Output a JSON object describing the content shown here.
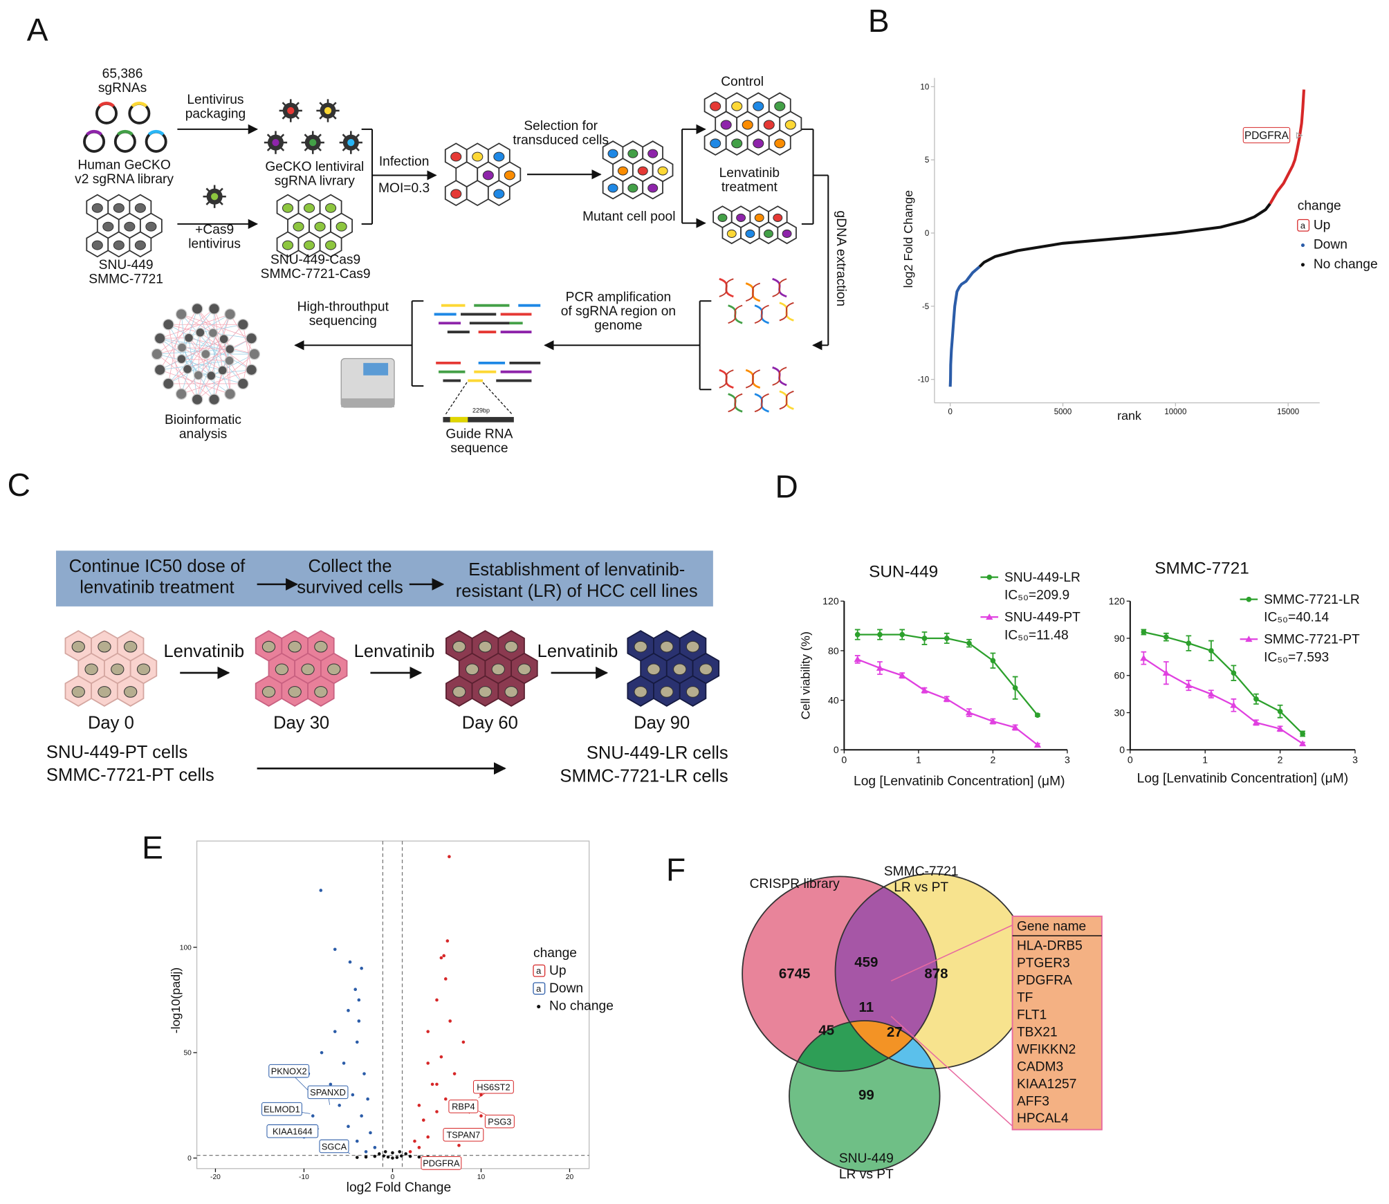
{
  "panel_labels": [
    "A",
    "B",
    "C",
    "D",
    "E",
    "F"
  ],
  "panel_a": {
    "library_size": [
      "65,386",
      "sgRNAs"
    ],
    "library": [
      "Human GeCKO",
      "v2 sgRNA library"
    ],
    "packaging": [
      "Lentivirus",
      "packaging"
    ],
    "virus": [
      "GeCKO lentiviral",
      "sgRNA livrary"
    ],
    "infection": [
      "Infection"
    ],
    "moi": [
      "MOI=0.3"
    ],
    "selection": [
      "Selection for",
      "transduced cells"
    ],
    "control": [
      "Control"
    ],
    "treatment": [
      "Lenvatinib",
      "treatment"
    ],
    "pool": [
      "Mutant cell pool"
    ],
    "cas9": [
      "+Cas9",
      "lentivirus"
    ],
    "parental": [
      "SNU-449",
      "SMMC-7721"
    ],
    "cas9_lines": [
      "SNU-449-Cas9",
      "SMMC-7721-Cas9"
    ],
    "extraction": [
      "gDNA extraction"
    ],
    "sequencing": [
      "High-throuthput",
      "sequencing"
    ],
    "pcr": [
      "PCR amplification",
      "of sgRNA region on",
      "genome"
    ],
    "analysis": [
      "Bioinformatic",
      "analysis"
    ],
    "amplicon": [
      "229bp"
    ],
    "guide": [
      "Guide RNA",
      "sequence"
    ]
  },
  "panel_c": {
    "steps": [
      [
        "Continue IC50 dose of",
        "lenvatinib treatment"
      ],
      [
        "Collect the",
        "survived cells"
      ],
      [
        "Establishment of  lenvatinib-",
        "resistant (LR) of HCC cell lines"
      ]
    ],
    "drug": [
      "Lenvatinib",
      "Lenvatinib",
      "Lenvatinib"
    ],
    "days": [
      "Day 0",
      "Day 30",
      "Day 60",
      "Day 90"
    ],
    "parental": [
      "SNU-449-PT cells",
      "SMMC-7721-PT cells"
    ],
    "resistant": [
      "SNU-449-LR cells",
      "SMMC-7721-LR cells"
    ]
  },
  "chart_data": [
    {
      "type": "line",
      "xlabel": "rank",
      "ylabel": "log2 Fold Change",
      "xlim": [
        -700,
        16400
      ],
      "ylim": [
        -11.6,
        10.6
      ],
      "xticks": [
        0,
        5000,
        10000,
        15000
      ],
      "yticks": [
        -10,
        -5,
        0,
        5,
        10
      ],
      "legend_title": "change",
      "legend_key": "a",
      "legend": "right",
      "series": [
        {
          "name": "Up",
          "color": "#d62728",
          "x": [
            14200,
            14500,
            14800,
            15000,
            15200,
            15300,
            15400,
            15500,
            15600,
            15650,
            15700
          ],
          "values": [
            2.0,
            2.8,
            3.4,
            4.0,
            4.6,
            5.0,
            5.7,
            6.5,
            7.5,
            8.5,
            9.8
          ]
        },
        {
          "name": "Down",
          "color": "#2b5ca8",
          "x": [
            0,
            10,
            20,
            50,
            100,
            150,
            200,
            300,
            400,
            500,
            700,
            1000,
            1300
          ],
          "values": [
            -10.5,
            -10,
            -9,
            -8,
            -7,
            -6,
            -5,
            -4,
            -3.7,
            -3.5,
            -3.3,
            -2.7,
            -2.3
          ]
        },
        {
          "name": "No change",
          "color": "#111111",
          "x": [
            1300,
            1500,
            2000,
            3000,
            5000,
            8000,
            10000,
            12000,
            13000,
            13500,
            14000,
            14200
          ],
          "values": [
            -2.3,
            -2.0,
            -1.6,
            -1.2,
            -0.7,
            -0.3,
            0,
            0.4,
            0.8,
            1.1,
            1.6,
            2.0
          ]
        }
      ],
      "annotations": [
        {
          "text": "PDGFRA",
          "color": "#d62728"
        }
      ]
    },
    {
      "type": "line",
      "title": "SUN-449",
      "xlabel": "Log [Lenvatinib Concentration] (μM)",
      "ylabel": "Cell viability (%)",
      "xlim": [
        0,
        3
      ],
      "ylim": [
        0,
        120
      ],
      "xticks": [
        0,
        1,
        2,
        3
      ],
      "yticks": [
        0,
        40,
        80,
        120
      ],
      "series": [
        {
          "name": "SNU-449-LR",
          "label": "IC₅₀=209.9",
          "color": "#2ca02c",
          "marker": "circle",
          "x": [
            0.18,
            0.48,
            0.78,
            1.08,
            1.38,
            1.68,
            2.0,
            2.3,
            2.6
          ],
          "values": [
            93,
            93,
            93,
            90,
            90,
            86,
            72,
            50,
            28
          ],
          "errors": [
            4,
            4,
            4,
            5,
            4,
            3,
            6,
            9,
            1
          ]
        },
        {
          "name": "SNU-449-PT",
          "label": "IC₅₀=11.48",
          "color": "#e040e0",
          "marker": "triangle",
          "x": [
            0.18,
            0.48,
            0.78,
            1.08,
            1.38,
            1.68,
            2.0,
            2.3,
            2.6
          ],
          "values": [
            73,
            66,
            60,
            48,
            41,
            30,
            23,
            18,
            4
          ],
          "errors": [
            3,
            5,
            2,
            2,
            2,
            3,
            2,
            2,
            1
          ]
        }
      ]
    },
    {
      "type": "line",
      "title": "SMMC-7721",
      "xlabel": "Log [Lenvatinib Concentration] (μM)",
      "xlim": [
        0,
        3
      ],
      "ylim": [
        0,
        120
      ],
      "xticks": [
        0,
        1,
        2,
        3
      ],
      "yticks": [
        0,
        30,
        60,
        90,
        120
      ],
      "series": [
        {
          "name": "SMMC-7721-LR",
          "label": "IC₅₀=40.14",
          "color": "#2ca02c",
          "marker": "circle",
          "x": [
            0.18,
            0.48,
            0.78,
            1.08,
            1.38,
            1.68,
            2.0,
            2.3
          ],
          "values": [
            95,
            91,
            86,
            80,
            62,
            41,
            31,
            13
          ],
          "errors": [
            2,
            3,
            6,
            8,
            6,
            4,
            5,
            2
          ]
        },
        {
          "name": "SMMC-7721-PT",
          "label": "IC₅₀=7.593",
          "color": "#e040e0",
          "marker": "triangle",
          "x": [
            0.18,
            0.48,
            0.78,
            1.08,
            1.38,
            1.68,
            2.0,
            2.3
          ],
          "values": [
            74,
            62,
            52,
            45,
            36,
            22,
            17,
            5
          ],
          "errors": [
            5,
            9,
            4,
            3,
            5,
            2,
            2,
            1
          ]
        }
      ]
    },
    {
      "type": "scatter",
      "xlabel": "log2 Fold Change",
      "ylabel": "-log10(padj)",
      "xlim": [
        -22.1,
        22.2
      ],
      "ylim": [
        -5,
        150.4
      ],
      "xticks": [
        -20,
        -10,
        0,
        10,
        20
      ],
      "yticks": [
        0,
        50,
        100
      ],
      "thresholds": {
        "x": [
          -1.1,
          1.1
        ],
        "y": 1.3
      },
      "legend_title": "change",
      "legend_key": "a",
      "legend": "right",
      "series": [
        {
          "name": "Up",
          "color": "#d62728",
          "x": [
            3,
            4,
            3.5,
            5,
            6,
            4.5,
            7,
            5.5,
            8,
            4,
            6.5,
            5,
            6,
            5.5,
            6.2,
            5.8,
            10,
            9,
            8.2,
            10,
            7,
            2.5,
            2,
            9.5,
            12,
            6.4,
            5,
            4,
            7.5,
            3
          ],
          "values": [
            5,
            10,
            18,
            22,
            28,
            35,
            40,
            48,
            55,
            60,
            65,
            75,
            85,
            95,
            103,
            96,
            20,
            27,
            25,
            30,
            12,
            8,
            3,
            12,
            18,
            143,
            35,
            45,
            6,
            25
          ]
        },
        {
          "name": "Down",
          "color": "#2b5ca8",
          "x": [
            -3,
            -4,
            -5,
            -3.5,
            -6,
            -4.5,
            -7,
            -3.2,
            -5.5,
            -8,
            -4,
            -6.5,
            -3.8,
            -5,
            -4.2,
            -3.5,
            -4.8,
            -6.5,
            -2.5,
            -2,
            -9,
            -10,
            -8.5,
            -11.5,
            -13,
            -9.5,
            -8.1,
            -3.8,
            -2.8,
            -8
          ],
          "values": [
            3,
            8,
            15,
            20,
            25,
            30,
            35,
            40,
            45,
            50,
            55,
            60,
            65,
            70,
            80,
            90,
            93,
            99,
            12,
            5,
            20,
            10,
            30,
            15,
            24,
            40,
            127,
            75,
            28,
            8
          ]
        },
        {
          "name": "No change",
          "color": "#111111",
          "x": [
            0,
            -1,
            1,
            -0.5,
            0.5,
            -2,
            2,
            1.5,
            -1.5,
            0,
            3,
            -3,
            -0.8,
            0.8,
            4,
            -4
          ],
          "values": [
            0,
            1,
            1,
            0.5,
            0.3,
            0.8,
            0.8,
            2,
            2,
            2.5,
            0.5,
            0.5,
            3,
            3,
            0.4,
            0.3
          ]
        }
      ],
      "annotations": [
        {
          "text": "PKNOX2",
          "color": "#2b5ca8"
        },
        {
          "text": "SPANXD",
          "color": "#2b5ca8"
        },
        {
          "text": "ELMOD1",
          "color": "#2b5ca8"
        },
        {
          "text": "KIAA1644",
          "color": "#2b5ca8"
        },
        {
          "text": "SGCA",
          "color": "#2b5ca8"
        },
        {
          "text": "HS6ST2",
          "color": "#d62728"
        },
        {
          "text": "RBP4",
          "color": "#d62728"
        },
        {
          "text": "PSG3",
          "color": "#d62728"
        },
        {
          "text": "TSPAN7",
          "color": "#d62728"
        },
        {
          "text": "PDGFRA",
          "color": "#d62728"
        }
      ]
    }
  ],
  "venn": {
    "sets": [
      [
        "CRISPR library"
      ],
      [
        "SMMC-7721",
        "LR vs PT"
      ],
      [
        "SNU-449",
        "LR vs PT"
      ]
    ],
    "counts": [
      6745,
      459,
      878,
      45,
      11,
      27,
      99
    ],
    "gene_table": {
      "header": "Gene name",
      "genes": [
        "HLA-DRB5",
        "PTGER3",
        "PDGFRA",
        "TF",
        "FLT1",
        "TBX21",
        "WFIKKN2",
        "CADM3",
        "KIAA1257",
        "AFF3",
        "HPCAL4"
      ]
    }
  }
}
